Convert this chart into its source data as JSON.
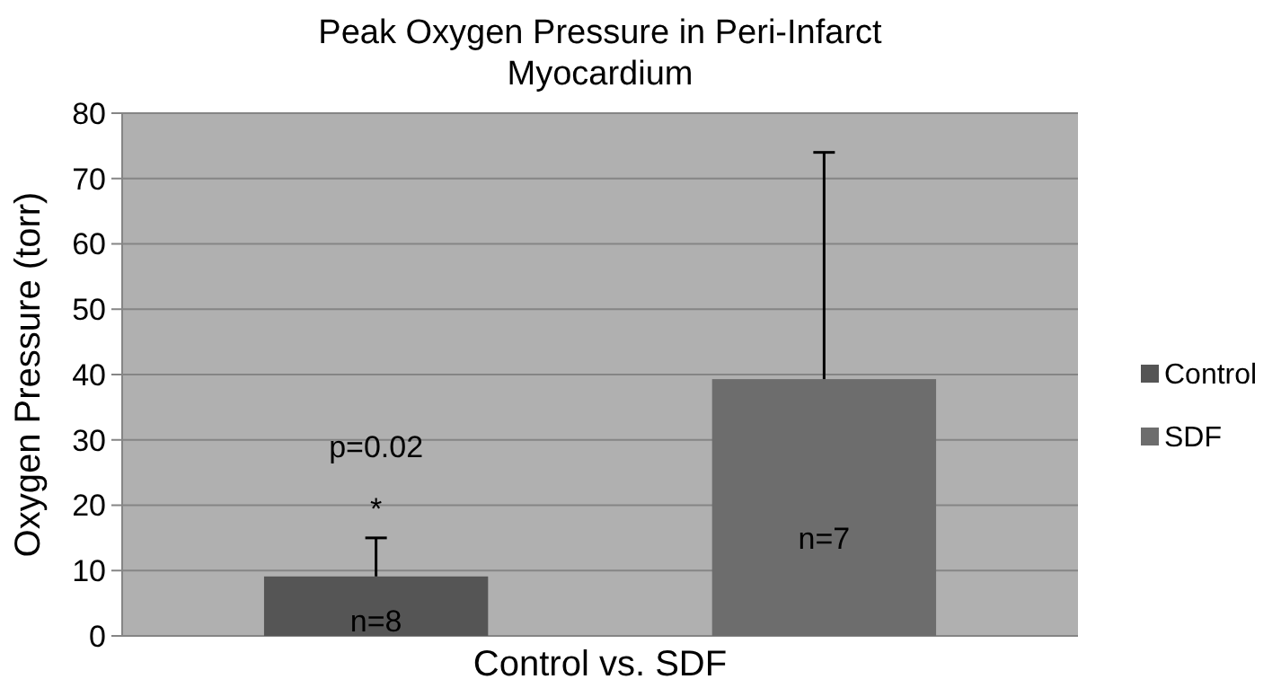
{
  "chart_data": {
    "type": "bar",
    "title": "Peak Oxygen Pressure in Peri-Infarct Myocardium",
    "xlabel": "Control vs. SDF",
    "ylabel": "Oxygen Pressure (torr)",
    "categories": [
      null
    ],
    "series": [
      {
        "name": "Control",
        "color": "#555555",
        "values": [
          9.1
        ],
        "errors": [
          [
            9.1,
            15.0
          ]
        ]
      },
      {
        "name": "SDF",
        "color": "#6d6d6d",
        "values": [
          39.3
        ],
        "errors": [
          [
            39.3,
            74.0
          ]
        ]
      }
    ],
    "ylim": [
      0,
      80
    ],
    "yticks": [
      0,
      10,
      20,
      30,
      40,
      50,
      60,
      70,
      80
    ],
    "grid": "y",
    "legend": "right",
    "annotations": [
      "p=0.02",
      "*",
      "n=8",
      "n=7"
    ]
  }
}
